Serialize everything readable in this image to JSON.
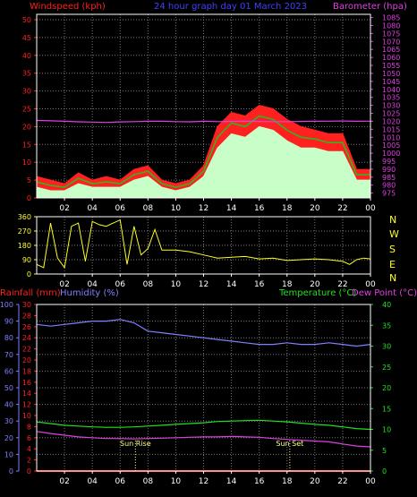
{
  "colors": {
    "background": "#000000",
    "axis": "#ffffff",
    "grid": "#777777",
    "wind_label": "#ff2020",
    "wind_avg": "#c8ffc8",
    "wind_line": "#20c020",
    "baro": "#e040e0",
    "title": "#4040ff",
    "direction": "#ffff20",
    "rain": "#ff2020",
    "humidity": "#8080ff",
    "temperature": "#20e020",
    "dew": "#e040e0",
    "sun": "#ffff80"
  },
  "chart_data": [
    {
      "type": "line",
      "title": "24 hour graph day  01  March 2023",
      "ylabel_left": "Windspeed (kph)",
      "ylabel_right": "Barometer (hpa)",
      "x_ticks": [
        "02",
        "04",
        "06",
        "08",
        "10",
        "12",
        "14",
        "16",
        "18",
        "20",
        "22",
        "00"
      ],
      "xlim_hours": [
        0,
        24
      ],
      "ylim_left": [
        0,
        50
      ],
      "yticks_left": [
        0,
        5,
        10,
        15,
        20,
        25,
        30,
        35,
        40,
        45,
        50
      ],
      "ylim_right": [
        972,
        1087
      ],
      "yticks_right": [
        975,
        980,
        985,
        990,
        995,
        1000,
        1005,
        1010,
        1015,
        1020,
        1025,
        1030,
        1035,
        1040,
        1045,
        1050,
        1055,
        1060,
        1065,
        1070,
        1075,
        1080,
        1085
      ],
      "grid": true,
      "x_hours": [
        0,
        1,
        2,
        3,
        4,
        5,
        6,
        7,
        8,
        9,
        10,
        11,
        12,
        13,
        14,
        15,
        16,
        17,
        18,
        19,
        20,
        21,
        22,
        23,
        24
      ],
      "series": [
        {
          "name": "gust",
          "values": [
            6,
            5,
            4,
            7,
            5,
            6,
            5,
            8,
            9,
            5,
            4,
            5,
            9,
            20,
            24,
            23,
            26,
            25,
            22,
            20,
            19,
            18,
            18,
            8,
            8
          ]
        },
        {
          "name": "average",
          "values": [
            3,
            2,
            2,
            4,
            3,
            3,
            3,
            5,
            6,
            3,
            2,
            3,
            6,
            14,
            18,
            17,
            20,
            19,
            16,
            14,
            14,
            13,
            13,
            5,
            5
          ]
        },
        {
          "name": "Barometer",
          "values": [
            1020.5,
            1020.3,
            1020.0,
            1019.7,
            1019.5,
            1019.3,
            1019.6,
            1019.8,
            1020.0,
            1020.0,
            1019.8,
            1019.7,
            1020.0,
            1019.8,
            1019.9,
            1020.0,
            1019.9,
            1019.8,
            1019.8,
            1019.9,
            1020.0,
            1020.1,
            1020.2,
            1020.0,
            1020.1
          ]
        }
      ]
    },
    {
      "type": "line",
      "ylabel_right": [
        "N",
        "W",
        "S",
        "E",
        "N"
      ],
      "ylim": [
        0,
        360
      ],
      "yticks": [
        0,
        90,
        180,
        270,
        360
      ],
      "yticks_labels": [
        "0",
        "90",
        "180",
        "270",
        "360"
      ],
      "x_ticks": [
        "02",
        "04",
        "06",
        "08",
        "10",
        "12",
        "14",
        "16",
        "18",
        "20",
        "22",
        "00"
      ],
      "grid": true,
      "x_hours": [
        0,
        0.5,
        1,
        1.5,
        2,
        2.5,
        3,
        3.5,
        4,
        4.5,
        5,
        5.5,
        6,
        6.5,
        7,
        7.5,
        8,
        8.5,
        9,
        10,
        11,
        12,
        13,
        14,
        15,
        16,
        17,
        18,
        19,
        20,
        21,
        22,
        22.5,
        23,
        23.5,
        24
      ],
      "series": [
        {
          "name": "direction",
          "values": [
            60,
            40,
            320,
            100,
            40,
            300,
            320,
            80,
            330,
            310,
            300,
            320,
            340,
            60,
            300,
            120,
            160,
            280,
            150,
            150,
            140,
            120,
            100,
            105,
            110,
            95,
            100,
            85,
            90,
            95,
            90,
            80,
            60,
            90,
            100,
            95
          ]
        }
      ]
    },
    {
      "type": "line",
      "ylabel_left_outer": "Rainfall (mm)",
      "ylabel_left": "Humidity (%)",
      "ylabel_right_a": "Temperature (°C)",
      "ylabel_right_b": "Dew Point (°C)",
      "x_ticks": [
        "02",
        "04",
        "06",
        "08",
        "10",
        "12",
        "14",
        "16",
        "18",
        "20",
        "22",
        "00"
      ],
      "ylim_humidity": [
        0,
        100
      ],
      "yticks_humidity": [
        0,
        10,
        20,
        30,
        40,
        50,
        60,
        70,
        80,
        90,
        100
      ],
      "ylim_rain": [
        0,
        30
      ],
      "yticks_rain": [
        0,
        2,
        4,
        6,
        8,
        10,
        12,
        14,
        16,
        18,
        20,
        22,
        24,
        26,
        28,
        30
      ],
      "ylim_temp": [
        0,
        40
      ],
      "yticks_temp": [
        0,
        5,
        10,
        15,
        20,
        25,
        30,
        35,
        40
      ],
      "grid": true,
      "annotations": [
        {
          "label": "Sun Rise",
          "x_hour": 7.1
        },
        {
          "label": "Sun Set",
          "x_hour": 18.2
        }
      ],
      "x_hours": [
        0,
        1,
        2,
        3,
        4,
        5,
        6,
        7,
        8,
        9,
        10,
        11,
        12,
        13,
        14,
        15,
        16,
        17,
        18,
        19,
        20,
        21,
        22,
        23,
        24
      ],
      "series": [
        {
          "name": "Humidity",
          "values": [
            88,
            87,
            88,
            89,
            90,
            90,
            91,
            89,
            84,
            83,
            82,
            81,
            80,
            79,
            78,
            77,
            76,
            76,
            77,
            76,
            76,
            77,
            76,
            75,
            76
          ]
        },
        {
          "name": "Temperature",
          "values": [
            11.8,
            11.4,
            11.0,
            10.8,
            10.6,
            10.5,
            10.5,
            10.6,
            10.8,
            11.0,
            11.2,
            11.4,
            11.6,
            11.9,
            12.0,
            12.1,
            12.2,
            12.0,
            11.8,
            11.5,
            11.2,
            11.0,
            10.6,
            10.2,
            10.0
          ]
        },
        {
          "name": "Dew Point",
          "values": [
            9.5,
            9.0,
            8.6,
            8.2,
            8.0,
            7.8,
            7.8,
            7.7,
            7.8,
            7.9,
            8.0,
            8.1,
            8.2,
            8.2,
            8.3,
            8.2,
            8.1,
            7.8,
            7.6,
            7.4,
            7.2,
            7.0,
            6.5,
            6.0,
            5.8
          ]
        },
        {
          "name": "Rainfall",
          "values": [
            0,
            0,
            0,
            0,
            0,
            0,
            0,
            0,
            0,
            0,
            0,
            0,
            0,
            0,
            0,
            0,
            0,
            0,
            0,
            0,
            0,
            0,
            0,
            0,
            0
          ]
        }
      ]
    }
  ]
}
